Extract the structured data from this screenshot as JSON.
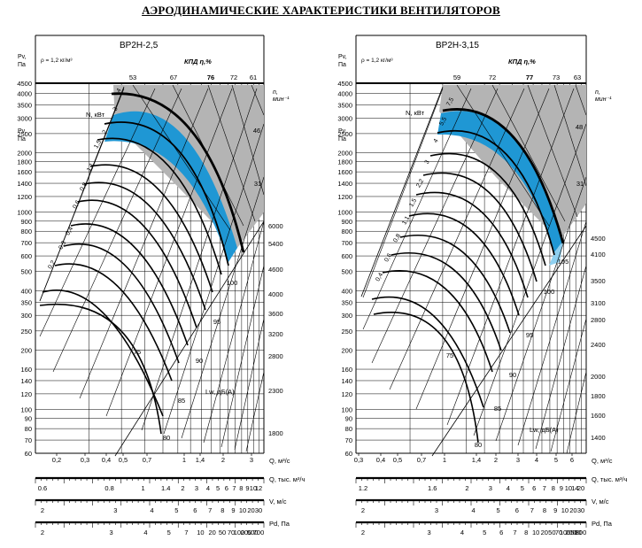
{
  "page_title": "АЭРОДИНАМИЧЕСКИЕ ХАРАКТЕРИСТИКИ ВЕНТИЛЯТОРОВ",
  "colors": {
    "shade": "#b4b4b4",
    "work_zone": "#1f97d4",
    "work_zone_light": "#8fd0f0",
    "line": "#000000"
  },
  "chart_data": [
    {
      "type": "line",
      "title": "ВР2Н-2,5",
      "density_note": "ρ = 1,2 кг/м³",
      "efficiency_label": "КПД η,%",
      "pressure_label_top": "Pv,",
      "pressure_label_unit": "Па",
      "pressure_label_bottom": "Pv,",
      "power_label": "N, кВт",
      "speed_label": "n,",
      "speed_unit": "мин⁻¹",
      "noise_label": "Lw, дБ(А)",
      "y_ticks": [
        60,
        70,
        80,
        90,
        100,
        120,
        140,
        160,
        200,
        250,
        300,
        350,
        400,
        500,
        600,
        700,
        800,
        900,
        1000,
        1200,
        1400,
        1600,
        1800,
        2000,
        2500,
        3000,
        3500,
        4000,
        4500
      ],
      "y_range": [
        60,
        4500
      ],
      "y_scale": "log",
      "x_ticks_q": [
        0.2,
        0.3,
        0.4,
        0.5,
        0.7,
        1,
        1.4,
        2,
        3
      ],
      "x_range": [
        0.13,
        3.8
      ],
      "efficiency_ticks": [
        53,
        67,
        76,
        72,
        61
      ],
      "speed_ticks": [
        6000,
        5400,
        4600,
        4000,
        3600,
        3200,
        2800,
        2300,
        1800
      ],
      "power_values": [
        4,
        3,
        2,
        1.5,
        1.1,
        0.8,
        0.6,
        0.4,
        0.3,
        0.2
      ],
      "right_edge_numbers": [
        46,
        31
      ],
      "noise_values": [
        100,
        95,
        90,
        85,
        80,
        75
      ],
      "scale_q_thousand": {
        "label": "Q, тыс. м³/ч",
        "ticks": [
          "0.6",
          "0.8",
          "1",
          "1.4",
          "2",
          "3",
          "4",
          "5",
          "6",
          "7",
          "8",
          "9",
          "10",
          "12"
        ]
      },
      "scale_v": {
        "label": "V, м/с",
        "ticks": [
          "2",
          "3",
          "4",
          "5",
          "6",
          "7",
          "8",
          "9",
          "10",
          "20",
          "30"
        ]
      },
      "scale_pd": {
        "label": "Pd, Па",
        "ticks": [
          "2",
          "3",
          "4",
          "5",
          "7",
          "10",
          "20",
          "50",
          "70",
          "100",
          "200",
          "500",
          "700"
        ]
      },
      "x_label": "Q, м³/с",
      "x_tick_labels": [
        "0,2",
        "0,3",
        "0,4",
        "0,5",
        "0,7",
        "1",
        "1,4",
        "2",
        "3"
      ]
    },
    {
      "type": "line",
      "title": "ВР2Н-3,15",
      "density_note": "ρ = 1,2 кг/м³",
      "efficiency_label": "КПД η,%",
      "pressure_label_top": "Pv,",
      "pressure_label_unit": "Па",
      "pressure_label_bottom": "Pv,",
      "power_label": "N, кВт",
      "speed_label": "n,",
      "speed_unit": "мин⁻¹",
      "noise_label": "Lw, дБ(А)",
      "y_ticks": [
        60,
        70,
        80,
        90,
        100,
        120,
        140,
        160,
        200,
        250,
        300,
        350,
        400,
        500,
        600,
        700,
        800,
        900,
        1000,
        1200,
        1400,
        1600,
        1800,
        2000,
        2500,
        3000,
        3500,
        4000,
        4500
      ],
      "y_range": [
        60,
        4500
      ],
      "y_scale": "log",
      "x_range": [
        0.3,
        6.2
      ],
      "efficiency_ticks": [
        59,
        72,
        77,
        73,
        63
      ],
      "speed_ticks": [
        4500,
        4100,
        3500,
        3100,
        2800,
        2400,
        2000,
        1800,
        1600,
        1400
      ],
      "power_values": [
        7.5,
        5.5,
        4,
        3,
        2.2,
        1.5,
        1.1,
        0.8,
        0.6,
        0.4
      ],
      "right_edge_numbers": [
        48,
        31
      ],
      "noise_values": [
        105,
        100,
        95,
        90,
        85,
        80,
        75
      ],
      "scale_q_thousand": {
        "label": "Q, тыс. м³/ч",
        "ticks": [
          "1.2",
          "1.6",
          "2",
          "3",
          "4",
          "5",
          "6",
          "7",
          "8",
          "9",
          "10",
          "14",
          "20"
        ]
      },
      "scale_v": {
        "label": "V, м/с",
        "ticks": [
          "2",
          "3",
          "4",
          "5",
          "6",
          "7",
          "8",
          "9",
          "10",
          "20",
          "30"
        ]
      },
      "scale_pd": {
        "label": "Pd, Па",
        "ticks": [
          "2",
          "3",
          "4",
          "5",
          "6",
          "7",
          "8",
          "10",
          "20",
          "50",
          "70",
          "100",
          "200",
          "500",
          "800"
        ]
      },
      "x_label": "Q, м³/с",
      "x_tick_labels": [
        "0,3",
        "0,4",
        "0,5",
        "0,7",
        "1",
        "1,4",
        "2",
        "3",
        "4",
        "5",
        "6"
      ]
    }
  ]
}
